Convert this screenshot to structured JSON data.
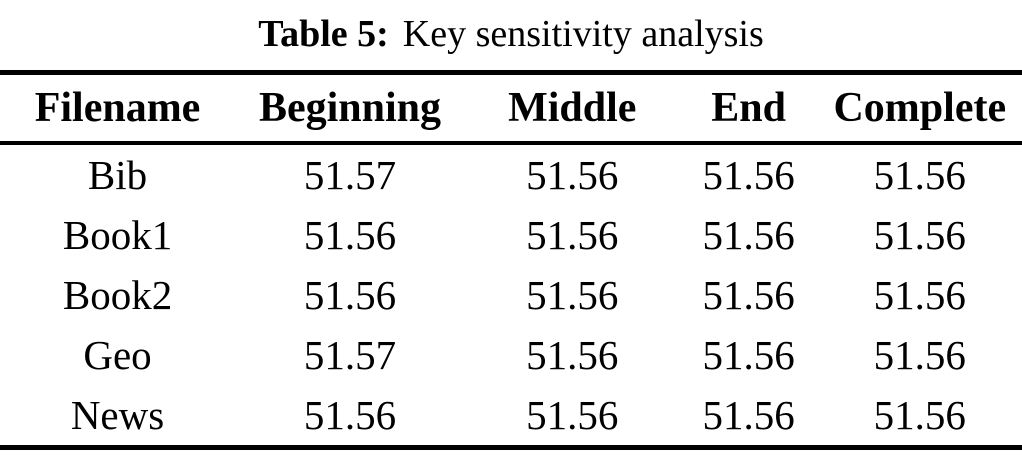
{
  "caption": {
    "label": "Table 5:",
    "title": "Key sensitivity analysis"
  },
  "table": {
    "columns": [
      "Filename",
      "Beginning",
      "Middle",
      "End",
      "Complete"
    ],
    "rows": [
      [
        "Bib",
        "51.57",
        "51.56",
        "51.56",
        "51.56"
      ],
      [
        "Book1",
        "51.56",
        "51.56",
        "51.56",
        "51.56"
      ],
      [
        "Book2",
        "51.56",
        "51.56",
        "51.56",
        "51.56"
      ],
      [
        "Geo",
        "51.57",
        "51.56",
        "51.56",
        "51.56"
      ],
      [
        "News",
        "51.56",
        "51.56",
        "51.56",
        "51.56"
      ]
    ]
  },
  "colors": {
    "text": "#000000",
    "background": "#ffffff",
    "rule": "#000000"
  }
}
